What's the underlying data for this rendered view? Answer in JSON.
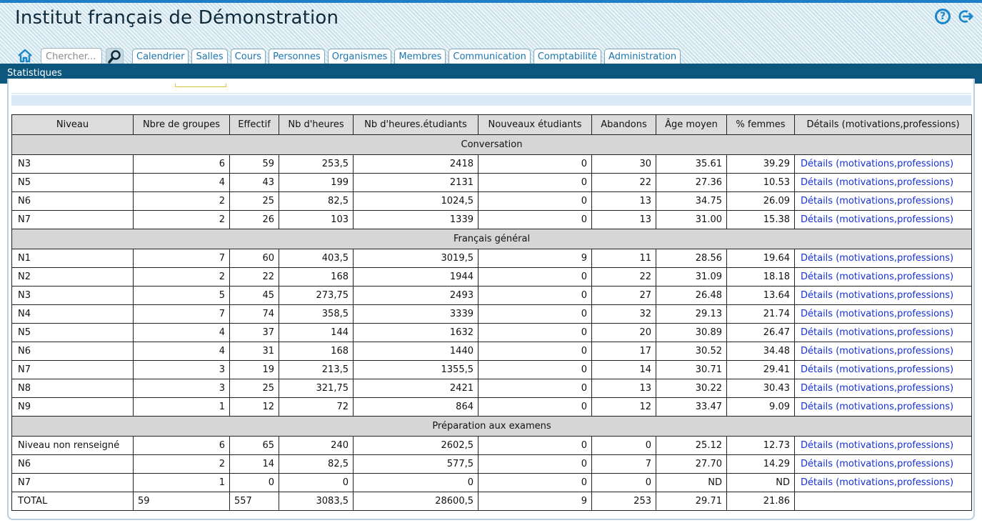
{
  "app": {
    "title": "Institut français de Démonstration"
  },
  "header_icons": {
    "help": "help-icon",
    "logout": "logout-icon",
    "home": "home-icon",
    "search": "search-icon"
  },
  "search": {
    "placeholder": "Chercher..."
  },
  "nav": {
    "tabs": [
      "Calendrier",
      "Salles",
      "Cours",
      "Personnes",
      "Organismes",
      "Membres",
      "Communication",
      "Comptabilité",
      "Administration"
    ]
  },
  "subnav": {
    "item": "Statistiques"
  },
  "colors": {
    "subnav_bg": "#0d567e",
    "link": "#1530d8",
    "header_bg": "#dcecf3",
    "tab_text": "#1a76b0"
  },
  "table": {
    "headers": [
      "Niveau",
      "Nbre de groupes",
      "Effectif",
      "Nb d'heures",
      "Nb d'heures.étudiants",
      "Nouveaux étudiants",
      "Abandons",
      "Âge moyen",
      "% femmes",
      "Détails (motivations,professions)"
    ],
    "sections": [
      {
        "title": "Conversation",
        "rows": [
          [
            "N3",
            "6",
            "59",
            "253,5",
            "2418",
            "0",
            "30",
            "35.61",
            "39.29",
            "Détails (motivations,professions)"
          ],
          [
            "N5",
            "4",
            "43",
            "199",
            "2131",
            "0",
            "22",
            "27.36",
            "10.53",
            "Détails (motivations,professions)"
          ],
          [
            "N6",
            "2",
            "25",
            "82,5",
            "1024,5",
            "0",
            "13",
            "34.75",
            "26.09",
            "Détails (motivations,professions)"
          ],
          [
            "N7",
            "2",
            "26",
            "103",
            "1339",
            "0",
            "13",
            "31.00",
            "15.38",
            "Détails (motivations,professions)"
          ]
        ]
      },
      {
        "title": "Français général",
        "rows": [
          [
            "N1",
            "7",
            "60",
            "403,5",
            "3019,5",
            "9",
            "11",
            "28.56",
            "19.64",
            "Détails (motivations,professions)"
          ],
          [
            "N2",
            "2",
            "22",
            "168",
            "1944",
            "0",
            "22",
            "31.09",
            "18.18",
            "Détails (motivations,professions)"
          ],
          [
            "N3",
            "5",
            "45",
            "273,75",
            "2493",
            "0",
            "27",
            "26.48",
            "13.64",
            "Détails (motivations,professions)"
          ],
          [
            "N4",
            "7",
            "74",
            "358,5",
            "3339",
            "0",
            "32",
            "29.13",
            "21.74",
            "Détails (motivations,professions)"
          ],
          [
            "N5",
            "4",
            "37",
            "144",
            "1632",
            "0",
            "20",
            "30.89",
            "26.47",
            "Détails (motivations,professions)"
          ],
          [
            "N6",
            "4",
            "31",
            "168",
            "1440",
            "0",
            "17",
            "30.52",
            "34.48",
            "Détails (motivations,professions)"
          ],
          [
            "N7",
            "3",
            "19",
            "213,5",
            "1355,5",
            "0",
            "14",
            "30.71",
            "29.41",
            "Détails (motivations,professions)"
          ],
          [
            "N8",
            "3",
            "25",
            "321,75",
            "2421",
            "0",
            "13",
            "30.22",
            "30.43",
            "Détails (motivations,professions)"
          ],
          [
            "N9",
            "1",
            "12",
            "72",
            "864",
            "0",
            "12",
            "33.47",
            "9.09",
            "Détails (motivations,professions)"
          ]
        ]
      },
      {
        "title": "Préparation aux examens",
        "rows": [
          [
            "Niveau non renseigné",
            "6",
            "65",
            "240",
            "2602,5",
            "0",
            "0",
            "25.12",
            "12.73",
            "Détails (motivations,professions)"
          ],
          [
            "N6",
            "2",
            "14",
            "82,5",
            "577,5",
            "0",
            "7",
            "27.70",
            "14.29",
            "Détails (motivations,professions)"
          ],
          [
            "N7",
            "1",
            "0",
            "0",
            "0",
            "0",
            "0",
            "ND",
            "ND",
            "Détails (motivations,professions)"
          ]
        ]
      }
    ],
    "total": [
      "TOTAL",
      "59",
      "557",
      "3083,5",
      "28600,5",
      "9",
      "253",
      "29.71",
      "21.86",
      ""
    ]
  }
}
